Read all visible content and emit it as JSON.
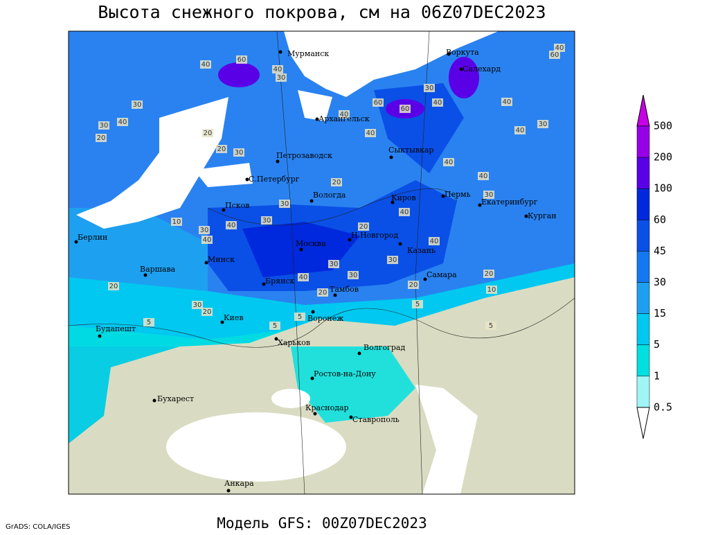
{
  "title": "Высота снежного покрова, см на 06Z07DEC2023",
  "footer": {
    "credit": "GrADS: COLA/IGES",
    "model": "Модель GFS: 00Z07DEC2023"
  },
  "legend": {
    "levels": [
      500,
      200,
      100,
      60,
      45,
      30,
      15,
      5,
      1,
      0.5
    ],
    "colors": [
      "#c800e6",
      "#9600e6",
      "#5a00e6",
      "#0028dc",
      "#0a50e6",
      "#1478f0",
      "#1ea0f0",
      "#00c8f0",
      "#00e0e0",
      "#a0f5f5",
      "#ffffff"
    ]
  },
  "cities": [
    "Мурманск",
    "Воркута",
    "Салехард",
    "Архангельск",
    "Петрозаводск",
    "Сыктывкар",
    "С.Петербург",
    "Вологда",
    "Киров",
    "Пермь",
    "Екатеринбург",
    "Курган",
    "Псков",
    "Берлин",
    "Н.Новгород",
    "Москва",
    "Казань",
    "Минск",
    "Варшава",
    "Самара",
    "Брянск",
    "Тамбов",
    "Киев",
    "Воронеж",
    "Будапешт",
    "Харьков",
    "Волгоград",
    "Ростов-на-Дону",
    "Бухарест",
    "Краснодар",
    "Ставрополь",
    "Анкара"
  ],
  "contour_labels": [
    40,
    60,
    40,
    30,
    30,
    40,
    30,
    20,
    20,
    20,
    30,
    40,
    40,
    60,
    60,
    40,
    30,
    40,
    40,
    30,
    60,
    40,
    40,
    40,
    30,
    20,
    30,
    30,
    40,
    20,
    40,
    40,
    30,
    20,
    20,
    10,
    5,
    5,
    30,
    30,
    40,
    20,
    20,
    30,
    20,
    5,
    5,
    5,
    10,
    30,
    40
  ]
}
